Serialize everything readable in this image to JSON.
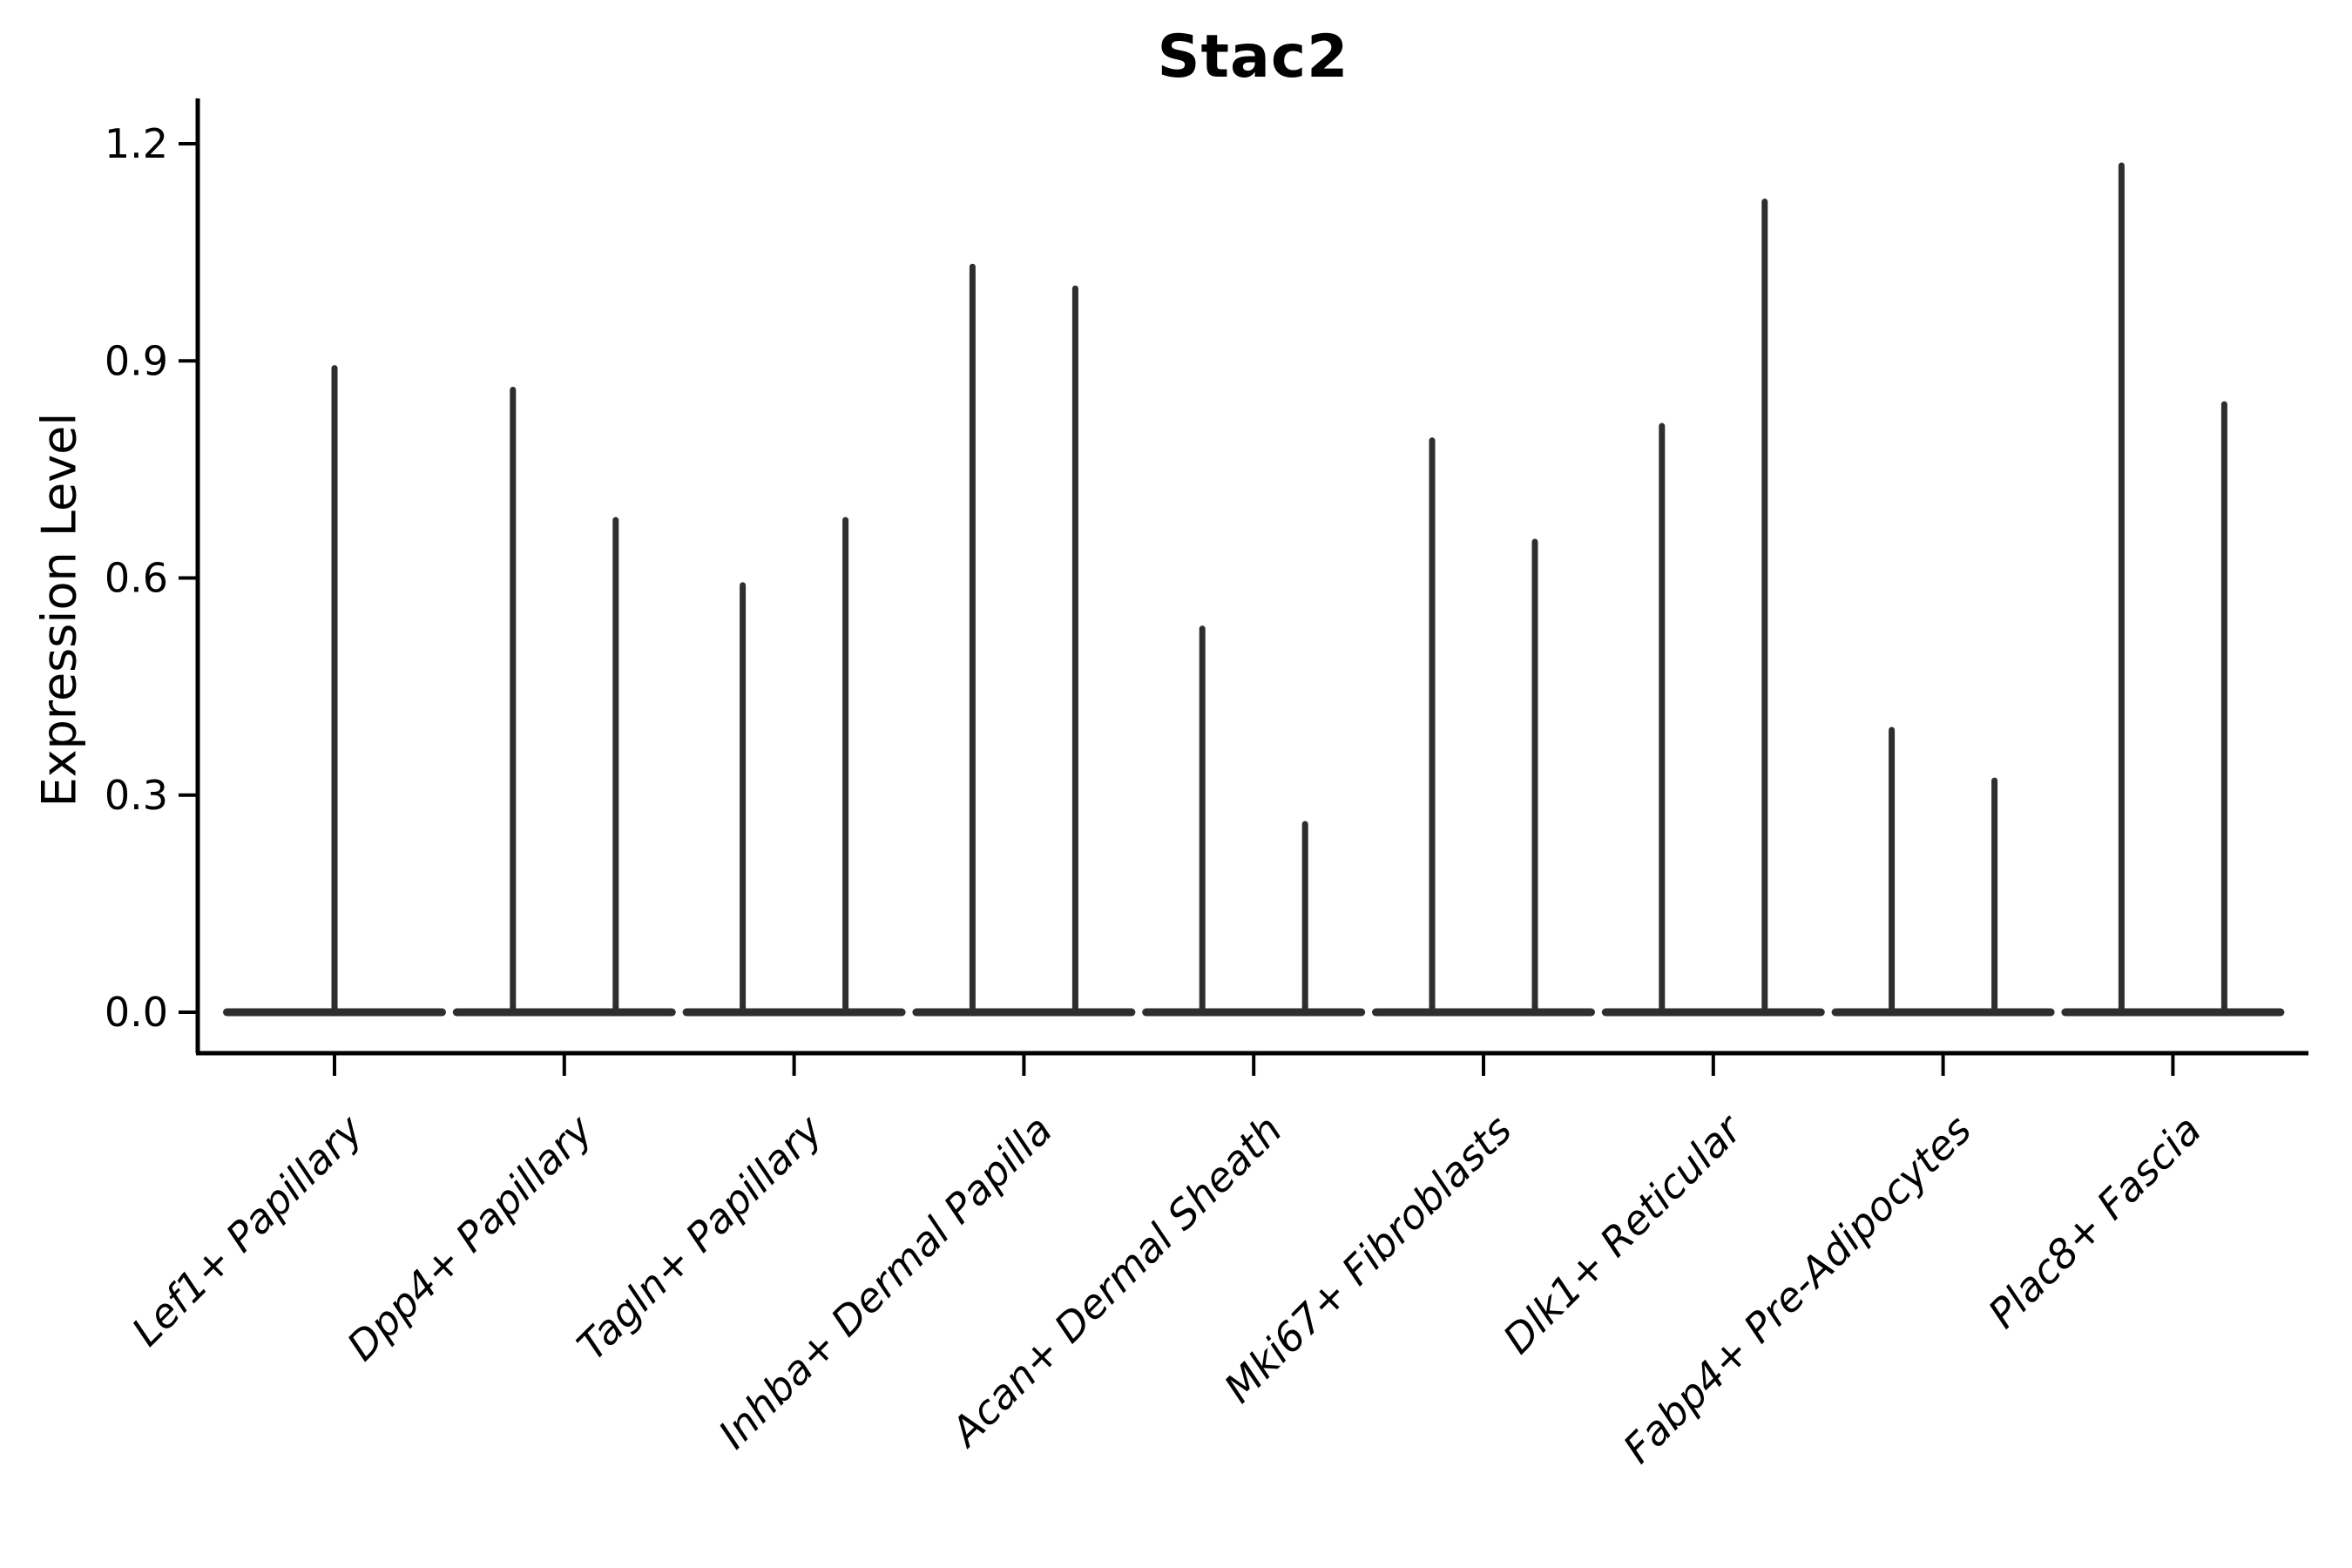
{
  "figure": {
    "title": "Stac2",
    "ylabel": "Expression Level"
  },
  "chart_data": {
    "type": "violin",
    "title": "Stac2",
    "xlabel": "",
    "ylabel": "Expression Level",
    "ylim": [
      -0.06,
      1.26
    ],
    "grid": false,
    "legend": "none",
    "ytick_labels": [
      "0.0",
      "0.3",
      "0.6",
      "0.9",
      "1.2"
    ],
    "ytick_values": [
      0,
      0.3,
      0.6,
      0.9,
      1.2
    ],
    "categories": [
      "Lef1+ Papillary",
      "Dpp4+ Papillary",
      "Tagln+ Papillary",
      "Inhba+ Dermal Papilla",
      "Acan+ Dermal Sheath",
      "Mki67+ Fibroblasts",
      "Dlk1+ Reticular",
      "Fabp4+ Pre-Adipocytes",
      "Plac8+ Fascia"
    ],
    "violin_color": "#2e2e2e",
    "axis_color": "#000000",
    "style_notes": "Expression is zero-inflated: each violin renders as a flat horizontal body at 0 with thin vertical spike(s) reaching the maximum expression value; x tick labels italic, rotated 45 degrees",
    "violins": [
      {
        "category": "Lef1+ Papillary",
        "spikes": [
          {
            "position": "center",
            "max": 0.89
          }
        ]
      },
      {
        "category": "Dpp4+ Papillary",
        "spikes": [
          {
            "position": "left",
            "max": 0.86
          },
          {
            "position": "right",
            "max": 0.68
          }
        ]
      },
      {
        "category": "Tagln+ Papillary",
        "spikes": [
          {
            "position": "left",
            "max": 0.59
          },
          {
            "position": "right",
            "max": 0.68
          }
        ]
      },
      {
        "category": "Inhba+ Dermal Papilla",
        "spikes": [
          {
            "position": "left",
            "max": 1.03
          },
          {
            "position": "right",
            "max": 1.0
          }
        ]
      },
      {
        "category": "Acan+ Dermal Sheath",
        "spikes": [
          {
            "position": "left",
            "max": 0.53
          },
          {
            "position": "right",
            "max": 0.26
          }
        ]
      },
      {
        "category": "Mki67+ Fibroblasts",
        "spikes": [
          {
            "position": "left",
            "max": 0.79
          },
          {
            "position": "right",
            "max": 0.65
          }
        ]
      },
      {
        "category": "Dlk1+ Reticular",
        "spikes": [
          {
            "position": "left",
            "max": 0.81
          },
          {
            "position": "right",
            "max": 1.12
          }
        ]
      },
      {
        "category": "Fabp4+ Pre-Adipocytes",
        "spikes": [
          {
            "position": "left",
            "max": 0.39
          },
          {
            "position": "right",
            "max": 0.32
          }
        ]
      },
      {
        "category": "Plac8+ Fascia",
        "spikes": [
          {
            "position": "left",
            "max": 1.17
          },
          {
            "position": "right",
            "max": 0.84
          }
        ]
      }
    ]
  }
}
